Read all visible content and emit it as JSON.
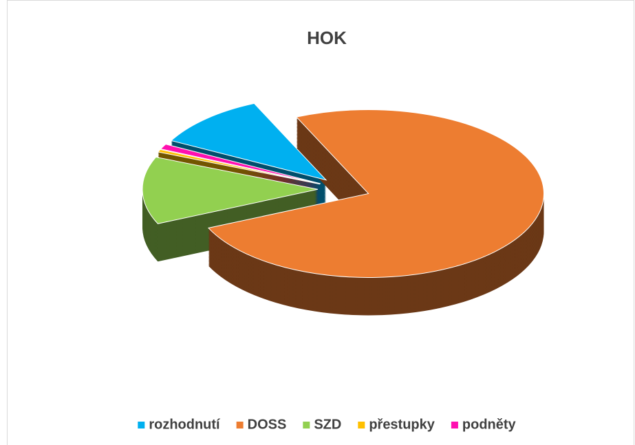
{
  "chart_data": {
    "type": "pie3d",
    "title": "HOK",
    "categories": [
      "rozhodnutí",
      "DOSS",
      "SZD",
      "přestupky",
      "podněty"
    ],
    "values": [
      10.5,
      75,
      13,
      0.5,
      1
    ],
    "colors": [
      "#00b0f0",
      "#ed7d31",
      "#92d050",
      "#ffc000",
      "#ff0fb0"
    ],
    "legend": "bottom"
  }
}
